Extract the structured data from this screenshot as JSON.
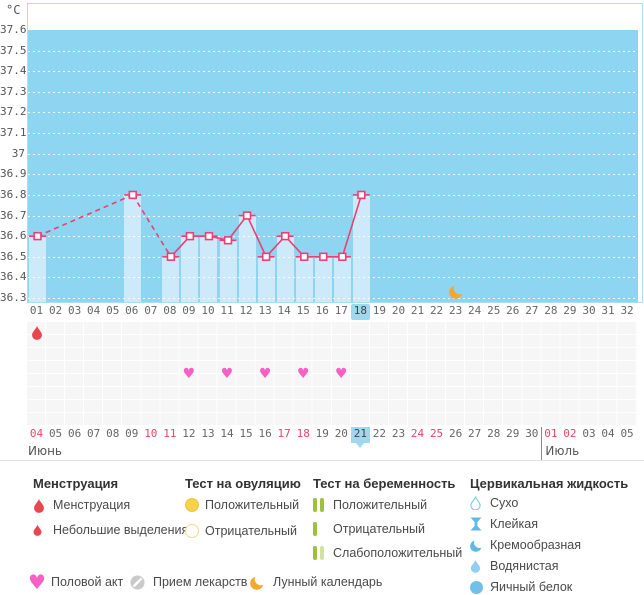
{
  "chart": {
    "unit_label": "°C",
    "y_tick_labels": [
      "37.6",
      "37.5",
      "37.4",
      "37.3",
      "37.2",
      "37.1",
      "37",
      "36.9",
      "36.8",
      "36.7",
      "36.6",
      "36.5",
      "36.4",
      "36.3"
    ],
    "current_cycle_day": 18,
    "day_labels": [
      "01",
      "02",
      "03",
      "04",
      "05",
      "06",
      "07",
      "08",
      "09",
      "10",
      "11",
      "12",
      "13",
      "14",
      "15",
      "16",
      "17",
      "18",
      "19",
      "20",
      "21",
      "22",
      "23",
      "24",
      "25",
      "26",
      "27",
      "28",
      "29",
      "30",
      "31",
      "32"
    ]
  },
  "chart_data": {
    "type": "bar+line",
    "title": "",
    "xlabel": "",
    "ylabel": "°C",
    "ylim": [
      36.3,
      37.6
    ],
    "y_step": 0.1,
    "x_range_days": 32,
    "grid": "white dotted horizontal lines on light-blue band",
    "series": [
      {
        "name": "temperature",
        "points": [
          {
            "day": 1,
            "temp": 36.6
          },
          {
            "day": 6,
            "temp": 36.8
          },
          {
            "day": 8,
            "temp": 36.5
          },
          {
            "day": 9,
            "temp": 36.6
          },
          {
            "day": 10,
            "temp": 36.6
          },
          {
            "day": 11,
            "temp": 36.58
          },
          {
            "day": 12,
            "temp": 36.7
          },
          {
            "day": 13,
            "temp": 36.5
          },
          {
            "day": 14,
            "temp": 36.6
          },
          {
            "day": 15,
            "temp": 36.5
          },
          {
            "day": 16,
            "temp": 36.5
          },
          {
            "day": 17,
            "temp": 36.5
          },
          {
            "day": 18,
            "temp": 36.8
          }
        ]
      }
    ]
  },
  "events": {
    "menstruation_days": [
      1
    ],
    "intercourse_days": [
      9,
      11,
      13,
      15,
      17
    ],
    "moon_calendar_days": [
      23
    ]
  },
  "calendar": {
    "month_left": "Июнь",
    "month_right": "Июль",
    "july_start_index": 27,
    "dates": [
      {
        "label": "04",
        "weekend": true
      },
      {
        "label": "05",
        "weekend": false
      },
      {
        "label": "06",
        "weekend": false
      },
      {
        "label": "07",
        "weekend": false
      },
      {
        "label": "08",
        "weekend": false
      },
      {
        "label": "09",
        "weekend": false
      },
      {
        "label": "10",
        "weekend": true
      },
      {
        "label": "11",
        "weekend": true
      },
      {
        "label": "12",
        "weekend": false
      },
      {
        "label": "13",
        "weekend": false
      },
      {
        "label": "14",
        "weekend": false
      },
      {
        "label": "15",
        "weekend": false
      },
      {
        "label": "16",
        "weekend": false
      },
      {
        "label": "17",
        "weekend": true
      },
      {
        "label": "18",
        "weekend": true
      },
      {
        "label": "19",
        "weekend": false
      },
      {
        "label": "20",
        "weekend": false
      },
      {
        "label": "21",
        "weekend": false,
        "today": true
      },
      {
        "label": "22",
        "weekend": false
      },
      {
        "label": "23",
        "weekend": false
      },
      {
        "label": "24",
        "weekend": true
      },
      {
        "label": "25",
        "weekend": true
      },
      {
        "label": "26",
        "weekend": false
      },
      {
        "label": "27",
        "weekend": false
      },
      {
        "label": "28",
        "weekend": false
      },
      {
        "label": "29",
        "weekend": false
      },
      {
        "label": "30",
        "weekend": false
      },
      {
        "label": "01",
        "weekend": true
      },
      {
        "label": "02",
        "weekend": true
      },
      {
        "label": "03",
        "weekend": false
      },
      {
        "label": "04",
        "weekend": false
      },
      {
        "label": "05",
        "weekend": false
      }
    ]
  },
  "legend": {
    "sections": [
      {
        "title": "Менструация",
        "items": [
          {
            "icon": "drop-red-large",
            "label": "Менструация"
          },
          {
            "icon": "drop-red-small",
            "label": "Небольшие выделения"
          }
        ]
      },
      {
        "title": "Тест на овуляцию",
        "items": [
          {
            "icon": "circle-yellow-filled",
            "label": "Положительный"
          },
          {
            "icon": "circle-yellow-outline",
            "label": "Отрицательный"
          }
        ]
      },
      {
        "title": "Тест на беременность",
        "items": [
          {
            "icon": "bars-green-two",
            "label": "Положительный"
          },
          {
            "icon": "bar-green-one",
            "label": "Отрицательный"
          },
          {
            "icon": "bars-green-weak",
            "label": "Слабоположительный"
          }
        ]
      },
      {
        "title": "Цервикальная жидкость",
        "items": [
          {
            "icon": "drop-blue-outline",
            "label": "Сухо"
          },
          {
            "icon": "hourglass-blue",
            "label": "Клейкая"
          },
          {
            "icon": "crescent-blue",
            "label": "Кремообразная"
          },
          {
            "icon": "drop-blue-filled",
            "label": "Водянистая"
          },
          {
            "icon": "circle-blue-filled",
            "label": "Яичный белок"
          }
        ]
      }
    ],
    "footer_items": [
      {
        "icon": "heart-pink",
        "label": "Половой акт"
      },
      {
        "icon": "pill-gray",
        "label": "Прием лекарств"
      },
      {
        "icon": "moon-orange",
        "label": "Лунный календарь"
      }
    ]
  },
  "colors": {
    "plot_band": "#8dd5f0",
    "bar": "#cdeafa",
    "highlight": "#9fd9ef",
    "line": "#ee3e73",
    "weekend_red": "#ee4464",
    "menstruation_red": "#e9474e",
    "heart_pink": "#f860c3",
    "moon_orange": "#f6a72e",
    "ovulation_yellow": "#f8d04a",
    "pregnancy_green": "#9cc23c",
    "pregnancy_green_pale": "#d2e29e",
    "cervical_blue": "#5fb9e8",
    "cervical_blue_light": "#93cdf1"
  }
}
